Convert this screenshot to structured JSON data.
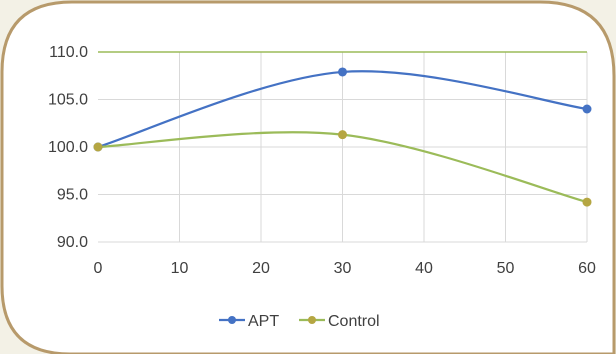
{
  "chart_data": {
    "type": "line",
    "x": [
      0,
      30,
      60
    ],
    "series": [
      {
        "name": "APT",
        "values": [
          100.0,
          107.9,
          104.0
        ],
        "color": "#4472c4",
        "smooth": true
      },
      {
        "name": "Control",
        "values": [
          100.0,
          101.3,
          94.2
        ],
        "color": "#9bbb59",
        "marker_color": "#b5a642",
        "smooth": true
      }
    ],
    "xlim": [
      0,
      60
    ],
    "ylim": [
      90,
      110
    ],
    "xticks": [
      0,
      10,
      20,
      30,
      40,
      50,
      60
    ],
    "yticks": [
      90.0,
      95.0,
      100.0,
      105.0,
      110.0
    ],
    "ytick_labels": [
      "90.0",
      "95.0",
      "100.0",
      "105.0",
      "110.0"
    ],
    "xtick_labels": [
      "0",
      "10",
      "20",
      "30",
      "40",
      "50",
      "60"
    ],
    "grid": true,
    "legend_position": "bottom",
    "title": "",
    "xlabel": "",
    "ylabel": ""
  },
  "colors": {
    "background": "#f3f1e6",
    "panel": "#ffffff",
    "frame": "#b79a6b",
    "grid": "#d9d9d9",
    "top_axis": "#9bbb59"
  }
}
